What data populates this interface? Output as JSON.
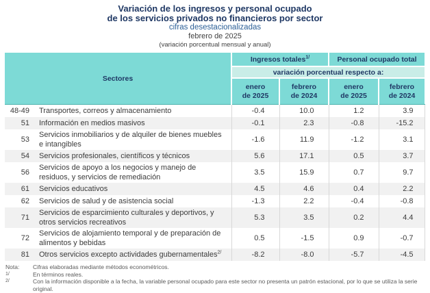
{
  "title": {
    "line1": "Variación de los ingresos y personal ocupado",
    "line2": "de los servicios privados no financieros por sector",
    "subtitle": "cifras desestacionalizadas",
    "period": "febrero de 2025",
    "measure_note": "(variación porcentual mensual y anual)"
  },
  "table": {
    "sectors_header": "Sectores",
    "groups": [
      {
        "label": "Ingresos totales",
        "sup": "1/"
      },
      {
        "label": "Personal ocupado total",
        "sup": ""
      }
    ],
    "span_header": "variación porcentual respecto a:",
    "col_headers": [
      "enero\nde 2025",
      "febrero\nde 2024",
      "enero\nde 2025",
      "febrero\nde 2024"
    ],
    "rows": [
      {
        "code": "48-49",
        "name": "Transportes, correos y almacenamiento",
        "values": [
          "-0.4",
          "10.0",
          "1.2",
          "3.9"
        ]
      },
      {
        "code": "51",
        "name": "Información en medios masivos",
        "values": [
          "-0.1",
          "2.3",
          "-0.8",
          "-15.2"
        ]
      },
      {
        "code": "53",
        "name": "Servicios inmobiliarios y de alquiler de bienes muebles e intangibles",
        "values": [
          "-1.6",
          "11.9",
          "-1.2",
          "3.1"
        ]
      },
      {
        "code": "54",
        "name": "Servicios profesionales, científicos y técnicos",
        "values": [
          "5.6",
          "17.1",
          "0.5",
          "3.7"
        ]
      },
      {
        "code": "56",
        "name": "Servicios de apoyo a los negocios y manejo de residuos, y servicios de remediación",
        "values": [
          "3.5",
          "15.9",
          "0.7",
          "9.7"
        ]
      },
      {
        "code": "61",
        "name": "Servicios educativos",
        "values": [
          "4.5",
          "4.6",
          "0.4",
          "2.2"
        ]
      },
      {
        "code": "62",
        "name": "Servicios de salud y de asistencia social",
        "values": [
          "-1.3",
          "2.2",
          "-0.4",
          "-0.8"
        ]
      },
      {
        "code": "71",
        "name": "Servicios de esparcimiento culturales y deportivos, y otros servicios recreativos",
        "values": [
          "5.3",
          "3.5",
          "0.2",
          "4.4"
        ]
      },
      {
        "code": "72",
        "name": "Servicios de alojamiento temporal y de preparación de alimentos y bebidas",
        "values": [
          "0.5",
          "-1.5",
          "0.9",
          "-0.7"
        ]
      },
      {
        "code": "81",
        "name": "Otros servicios excepto actividades gubernamentales",
        "name_sup": "2/",
        "values": [
          "-8.2",
          "-8.0",
          "-5.7",
          "-4.5"
        ]
      }
    ]
  },
  "notes": [
    {
      "label": "Nota:",
      "label_style": "normal",
      "text": "Cifras elaboradas mediante métodos econométricos."
    },
    {
      "label": "1/",
      "label_style": "sup",
      "text": "En términos reales."
    },
    {
      "label": "2/",
      "label_style": "sup",
      "text": "Con la información disponible a la fecha, la variable personal ocupado para este sector no presenta un patrón estacional, por lo que se utiliza la serie original."
    },
    {
      "label": "Fuente:",
      "label_style": "normal",
      "parts": [
        {
          "text": "INEGI",
          "small_caps": true
        },
        {
          "text": ". Encuesta Mensual de Servicios (",
          "small_caps": false
        },
        {
          "text": "EMS",
          "small_caps": true
        },
        {
          "text": "), 2025.",
          "small_caps": false
        }
      ]
    }
  ],
  "colors": {
    "header_teal": "#7DDAD6",
    "header_light_band": "#C9EDE7",
    "title_navy": "#1F3864",
    "subtitle_blue": "#2A5E96",
    "alt_row_gray": "#F1F1F1",
    "grid_line": "#D8D8D8"
  }
}
